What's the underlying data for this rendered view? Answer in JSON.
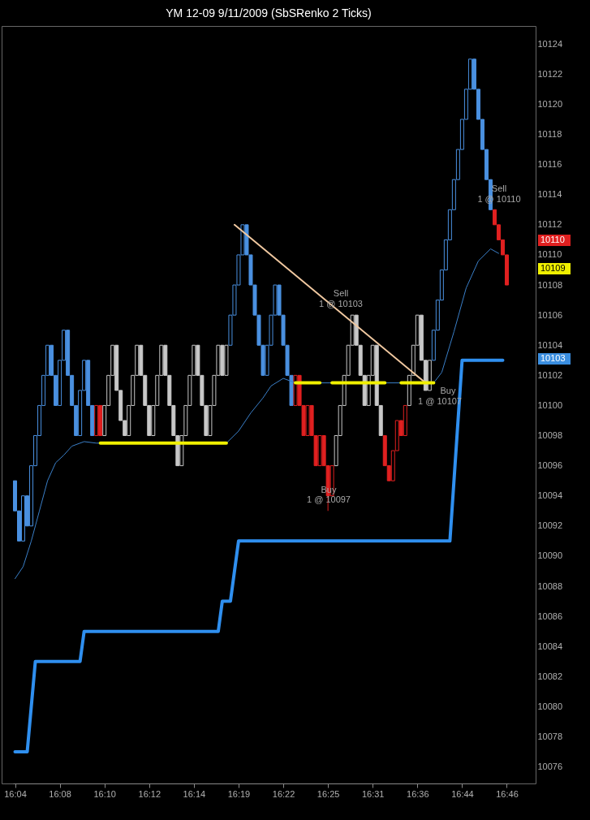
{
  "chart_data": {
    "type": "candlestick",
    "title": "YM 12-09  9/11/2009 (SbSRenko 2 Ticks)",
    "categories": [
      "16:04",
      null,
      null,
      null,
      null,
      null,
      null,
      null,
      null,
      null,
      null,
      "16:08",
      null,
      null,
      null,
      null,
      null,
      null,
      null,
      null,
      null,
      null,
      "16:10",
      null,
      null,
      null,
      null,
      null,
      null,
      null,
      null,
      null,
      null,
      "16:12",
      null,
      null,
      null,
      null,
      null,
      null,
      null,
      null,
      null,
      null,
      "16:14",
      null,
      null,
      null,
      null,
      null,
      null,
      null,
      null,
      null,
      null,
      "16:19",
      null,
      null,
      null,
      null,
      null,
      null,
      null,
      null,
      null,
      null,
      "16:22",
      null,
      null,
      null,
      null,
      null,
      null,
      null,
      null,
      null,
      null,
      "16:25",
      null,
      null,
      null,
      null,
      null,
      null,
      null,
      null,
      null,
      null,
      "16:31",
      null,
      null,
      null,
      null,
      null,
      null,
      null,
      null,
      null,
      null,
      "16:36",
      null,
      null,
      null,
      null,
      null,
      null,
      null,
      null,
      null,
      null,
      "16:44",
      null,
      null,
      null,
      null,
      null,
      null,
      null,
      null,
      null,
      null,
      "16:46"
    ],
    "ohlc": [
      [
        10095,
        10095,
        10093,
        10093
      ],
      [
        10093,
        10093,
        10091,
        10091
      ],
      [
        10091,
        10094,
        10091,
        10094
      ],
      [
        10094,
        10094,
        10092,
        10092
      ],
      [
        10092,
        10096,
        10092,
        10096
      ],
      [
        10096,
        10098,
        10096,
        10098
      ],
      [
        10098,
        10100,
        10098,
        10100
      ],
      [
        10100,
        10102,
        10100,
        10102
      ],
      [
        10102,
        10104,
        10102,
        10104
      ],
      [
        10104,
        10104,
        10102,
        10102
      ],
      [
        10102,
        10102,
        10100,
        10100
      ],
      [
        10100,
        10103,
        10100,
        10103
      ],
      [
        10103,
        10105,
        10103,
        10105
      ],
      [
        10105,
        10105,
        10102,
        10102
      ],
      [
        10102,
        10102,
        10100,
        10100
      ],
      [
        10100,
        10100,
        10098,
        10098
      ],
      [
        10098,
        10101,
        10098,
        10101
      ],
      [
        10101,
        10103,
        10101,
        10103
      ],
      [
        10103,
        10103,
        10100,
        10100
      ],
      [
        10100,
        10100,
        10098,
        10098
      ],
      [
        10098,
        10100,
        10098,
        10100
      ],
      [
        10100,
        10100,
        10098,
        10098
      ],
      [
        10098,
        10100,
        10098,
        10100
      ],
      [
        10100,
        10102,
        10100,
        10102
      ],
      [
        10102,
        10104,
        10102,
        10104
      ],
      [
        10104,
        10104,
        10101,
        10101
      ],
      [
        10101,
        10101,
        10099,
        10099
      ],
      [
        10099,
        10099,
        10098,
        10098
      ],
      [
        10098,
        10100,
        10098,
        10100
      ],
      [
        10100,
        10102,
        10100,
        10102
      ],
      [
        10102,
        10104,
        10102,
        10104
      ],
      [
        10104,
        10104,
        10102,
        10102
      ],
      [
        10102,
        10102,
        10100,
        10100
      ],
      [
        10100,
        10100,
        10098,
        10098
      ],
      [
        10098,
        10100,
        10098,
        10100
      ],
      [
        10100,
        10102,
        10100,
        10102
      ],
      [
        10102,
        10104,
        10102,
        10104
      ],
      [
        10104,
        10104,
        10102,
        10102
      ],
      [
        10102,
        10102,
        10100,
        10100
      ],
      [
        10100,
        10100,
        10098,
        10098
      ],
      [
        10098,
        10098,
        10096,
        10096
      ],
      [
        10096,
        10098,
        10096,
        10098
      ],
      [
        10098,
        10100,
        10098,
        10100
      ],
      [
        10100,
        10102,
        10100,
        10102
      ],
      [
        10102,
        10104,
        10102,
        10104
      ],
      [
        10104,
        10104,
        10102,
        10102
      ],
      [
        10102,
        10102,
        10100,
        10100
      ],
      [
        10100,
        10100,
        10098,
        10098
      ],
      [
        10098,
        10100,
        10098,
        10100
      ],
      [
        10100,
        10102,
        10100,
        10102
      ],
      [
        10102,
        10104,
        10102,
        10104
      ],
      [
        10104,
        10104,
        10102,
        10102
      ],
      [
        10102,
        10104,
        10102,
        10104
      ],
      [
        10104,
        10106,
        10104,
        10106
      ],
      [
        10106,
        10108,
        10106,
        10108
      ],
      [
        10108,
        10110,
        10108,
        10110
      ],
      [
        10110,
        10112,
        10110,
        10112
      ],
      [
        10112,
        10112,
        10110,
        10110
      ],
      [
        10110,
        10110,
        10108,
        10108
      ],
      [
        10108,
        10108,
        10106,
        10106
      ],
      [
        10106,
        10106,
        10104,
        10104
      ],
      [
        10104,
        10104,
        10102,
        10102
      ],
      [
        10102,
        10104,
        10102,
        10104
      ],
      [
        10104,
        10106,
        10104,
        10106
      ],
      [
        10106,
        10108,
        10106,
        10108
      ],
      [
        10108,
        10108,
        10106,
        10106
      ],
      [
        10106,
        10106,
        10104,
        10104
      ],
      [
        10104,
        10104,
        10102,
        10102
      ],
      [
        10102,
        10102,
        10100,
        10100
      ],
      [
        10100,
        10102,
        10100,
        10102
      ],
      [
        10102,
        10102,
        10100,
        10100
      ],
      [
        10100,
        10100,
        10098,
        10098
      ],
      [
        10098,
        10100,
        10098,
        10100
      ],
      [
        10100,
        10100,
        10098,
        10098
      ],
      [
        10098,
        10098,
        10096,
        10096
      ],
      [
        10096,
        10098,
        10096,
        10098
      ],
      [
        10098,
        10098,
        10096,
        10096
      ],
      [
        10096,
        10096,
        10093,
        10094
      ],
      [
        10094,
        10096,
        10094,
        10096
      ],
      [
        10096,
        10098,
        10096,
        10098
      ],
      [
        10098,
        10100,
        10098,
        10100
      ],
      [
        10100,
        10102,
        10100,
        10102
      ],
      [
        10102,
        10104,
        10102,
        10104
      ],
      [
        10104,
        10106,
        10104,
        10106
      ],
      [
        10106,
        10106,
        10104,
        10104
      ],
      [
        10104,
        10104,
        10102,
        10102
      ],
      [
        10102,
        10102,
        10100,
        10100
      ],
      [
        10100,
        10102,
        10100,
        10102
      ],
      [
        10102,
        10104,
        10102,
        10104
      ],
      [
        10104,
        10104,
        10100,
        10100
      ],
      [
        10100,
        10100,
        10098,
        10098
      ],
      [
        10098,
        10098,
        10096,
        10096
      ],
      [
        10096,
        10096,
        10095,
        10095
      ],
      [
        10095,
        10097,
        10095,
        10097
      ],
      [
        10097,
        10099,
        10097,
        10099
      ],
      [
        10099,
        10099,
        10098,
        10098
      ],
      [
        10098,
        10100,
        10098,
        10100
      ],
      [
        10100,
        10102,
        10100,
        10102
      ],
      [
        10102,
        10104,
        10102,
        10104
      ],
      [
        10104,
        10106,
        10104,
        10106
      ],
      [
        10106,
        10106,
        10103,
        10103
      ],
      [
        10103,
        10103,
        10101,
        10101
      ],
      [
        10101,
        10103,
        10101,
        10103
      ],
      [
        10103,
        10105,
        10103,
        10105
      ],
      [
        10105,
        10107,
        10105,
        10107
      ],
      [
        10107,
        10109,
        10107,
        10109
      ],
      [
        10109,
        10111,
        10109,
        10111
      ],
      [
        10111,
        10113,
        10111,
        10113
      ],
      [
        10113,
        10115,
        10113,
        10115
      ],
      [
        10115,
        10117,
        10115,
        10117
      ],
      [
        10117,
        10119,
        10117,
        10119
      ],
      [
        10119,
        10121,
        10119,
        10121
      ],
      [
        10121,
        10123,
        10121,
        10123
      ],
      [
        10123,
        10123,
        10121,
        10121
      ],
      [
        10121,
        10121,
        10119,
        10119
      ],
      [
        10119,
        10119,
        10117,
        10117
      ],
      [
        10117,
        10117,
        10115,
        10115
      ],
      [
        10115,
        10115,
        10113,
        10113
      ],
      [
        10113,
        10113,
        10112,
        10112
      ],
      [
        10112,
        10112,
        10111,
        10111
      ],
      [
        10111,
        10111,
        10110,
        10110
      ],
      [
        10110,
        10110,
        10108,
        10108
      ]
    ],
    "colors": [
      "#4a90e0",
      "#4a90e0",
      "#4a90e0",
      "#4a90e0",
      "#4a90e0",
      "#4a90e0",
      "#4a90e0",
      "#4a90e0",
      "#4a90e0",
      "#4a90e0",
      "#4a90e0",
      "#4a90e0",
      "#4a90e0",
      "#4a90e0",
      "#4a90e0",
      "#4a90e0",
      "#4a90e0",
      "#4a90e0",
      "#4a90e0",
      "#4a90e0",
      "#e02020",
      "#e02020",
      "#c8c8c8",
      "#c8c8c8",
      "#c8c8c8",
      "#c8c8c8",
      "#c8c8c8",
      "#c8c8c8",
      "#c8c8c8",
      "#c8c8c8",
      "#c8c8c8",
      "#c8c8c8",
      "#c8c8c8",
      "#c8c8c8",
      "#c8c8c8",
      "#c8c8c8",
      "#c8c8c8",
      "#c8c8c8",
      "#c8c8c8",
      "#c8c8c8",
      "#c8c8c8",
      "#c8c8c8",
      "#c8c8c8",
      "#c8c8c8",
      "#c8c8c8",
      "#c8c8c8",
      "#c8c8c8",
      "#c8c8c8",
      "#c8c8c8",
      "#c8c8c8",
      "#c8c8c8",
      "#c8c8c8",
      "#c8c8c8",
      "#4a90e0",
      "#4a90e0",
      "#4a90e0",
      "#4a90e0",
      "#4a90e0",
      "#4a90e0",
      "#4a90e0",
      "#4a90e0",
      "#4a90e0",
      "#4a90e0",
      "#4a90e0",
      "#4a90e0",
      "#4a90e0",
      "#4a90e0",
      "#4a90e0",
      "#4a90e0",
      "#e02020",
      "#e02020",
      "#e02020",
      "#e02020",
      "#e02020",
      "#e02020",
      "#e02020",
      "#e02020",
      "#e02020",
      "#e02020",
      "#c8c8c8",
      "#c8c8c8",
      "#c8c8c8",
      "#c8c8c8",
      "#c8c8c8",
      "#c8c8c8",
      "#c8c8c8",
      "#c8c8c8",
      "#c8c8c8",
      "#c8c8c8",
      "#c8c8c8",
      "#c8c8c8",
      "#e02020",
      "#e02020",
      "#e02020",
      "#e02020",
      "#e02020",
      "#e02020",
      "#c8c8c8",
      "#c8c8c8",
      "#c8c8c8",
      "#c8c8c8",
      "#c8c8c8",
      "#c8c8c8",
      "#4a90e0",
      "#4a90e0",
      "#4a90e0",
      "#4a90e0",
      "#4a90e0",
      "#4a90e0",
      "#4a90e0",
      "#4a90e0",
      "#4a90e0",
      "#4a90e0",
      "#4a90e0",
      "#4a90e0",
      "#4a90e0",
      "#4a90e0",
      "#4a90e0",
      "#e02020",
      "#e02020",
      "#e02020",
      "#e02020"
    ],
    "series": [
      {
        "type": "line",
        "color": "#2f8fef",
        "values": [
          10077,
          null,
          null,
          10077,
          null,
          10083,
          null,
          null,
          null,
          null,
          null,
          null,
          null,
          null,
          null,
          null,
          10083,
          10085,
          null,
          null,
          null,
          null,
          null,
          null,
          null,
          null,
          null,
          null,
          null,
          null,
          null,
          null,
          null,
          null,
          null,
          null,
          null,
          null,
          null,
          null,
          null,
          null,
          null,
          null,
          null,
          null,
          null,
          null,
          null,
          null,
          10085,
          10087,
          null,
          10087,
          null,
          10091,
          null,
          null,
          null,
          null,
          null,
          null,
          null,
          null,
          null,
          null,
          null,
          null,
          null,
          null,
          null,
          null,
          null,
          null,
          null,
          null,
          null,
          null,
          null,
          null,
          null,
          null,
          null,
          null,
          null,
          null,
          null,
          null,
          null,
          null,
          null,
          null,
          null,
          null,
          null,
          null,
          null,
          null,
          null,
          null,
          null,
          null,
          null,
          null,
          null,
          null,
          null,
          10091,
          null,
          null,
          10103,
          null,
          null,
          null,
          null,
          null,
          null,
          null,
          null,
          null,
          10103,
          null
        ]
      },
      {
        "type": "line",
        "color": "#3a7fc8",
        "values": [
          10088.5,
          null,
          10089.3,
          null,
          10091,
          null,
          10093,
          null,
          10095,
          null,
          10096.2,
          null,
          10096.7,
          null,
          10097.3,
          null,
          null,
          10097.6,
          null,
          null,
          10097.5,
          null,
          null,
          null,
          null,
          null,
          null,
          null,
          null,
          null,
          null,
          null,
          null,
          null,
          null,
          null,
          null,
          null,
          null,
          null,
          null,
          null,
          null,
          null,
          null,
          null,
          null,
          null,
          null,
          null,
          null,
          null,
          10097.5,
          null,
          null,
          10098.3,
          null,
          null,
          10099.5,
          null,
          null,
          10100.5,
          null,
          10101.3,
          null,
          null,
          10101.8,
          null,
          null,
          10101.5,
          null,
          null,
          null,
          null,
          null,
          null,
          null,
          null,
          null,
          null,
          null,
          null,
          null,
          null,
          null,
          null,
          null,
          null,
          null,
          null,
          null,
          null,
          null,
          null,
          null,
          null,
          null,
          null,
          null,
          null,
          null,
          null,
          null,
          10101.5,
          null,
          10102.2,
          null,
          null,
          10104.9,
          null,
          null,
          10107.8,
          null,
          null,
          10109.6,
          null,
          null,
          10110.4,
          null,
          10110.1,
          null,
          null
        ]
      },
      {
        "type": "line",
        "color": "#f0c8a0",
        "values": [
          null,
          null,
          null,
          null,
          null,
          null,
          null,
          null,
          null,
          null,
          null,
          null,
          null,
          null,
          null,
          null,
          null,
          null,
          null,
          null,
          null,
          null,
          null,
          null,
          null,
          null,
          null,
          null,
          null,
          null,
          null,
          null,
          null,
          null,
          null,
          null,
          null,
          null,
          null,
          null,
          null,
          null,
          null,
          null,
          null,
          null,
          null,
          null,
          null,
          null,
          null,
          null,
          null,
          null,
          10112,
          null,
          null,
          null,
          null,
          null,
          null,
          null,
          null,
          null,
          null,
          null,
          null,
          null,
          null,
          null,
          null,
          null,
          null,
          null,
          null,
          null,
          null,
          null,
          null,
          null,
          null,
          null,
          null,
          null,
          null,
          null,
          null,
          null,
          null,
          null,
          null,
          null,
          null,
          null,
          null,
          null,
          null,
          null,
          null,
          null,
          null,
          10101.5,
          null,
          null,
          null,
          null,
          null,
          null,
          null,
          null,
          null,
          null,
          null,
          null,
          null,
          null,
          null,
          null,
          null,
          null,
          null,
          null
        ]
      },
      {
        "type": "line",
        "color": "#f0f000",
        "values": [
          null,
          null,
          null,
          null,
          null,
          null,
          null,
          null,
          null,
          null,
          null,
          null,
          null,
          null,
          null,
          null,
          null,
          null,
          null,
          null,
          null,
          10097.5,
          null,
          null,
          null,
          null,
          null,
          null,
          null,
          null,
          null,
          null,
          null,
          null,
          null,
          null,
          null,
          null,
          null,
          null,
          null,
          null,
          null,
          null,
          null,
          null,
          null,
          null,
          null,
          null,
          null,
          null,
          10097.5,
          null,
          null,
          null,
          null,
          null,
          null,
          null,
          null,
          null,
          null,
          null,
          null,
          null,
          null,
          null,
          null,
          null,
          null,
          null,
          null,
          null,
          null,
          null,
          null,
          null,
          null,
          null,
          null,
          null,
          null,
          null,
          null,
          null,
          null,
          null,
          null,
          null,
          null,
          null,
          null,
          null,
          null,
          null,
          null,
          null,
          null,
          null,
          null,
          null,
          null,
          null,
          null,
          null,
          null,
          null,
          null,
          null,
          null,
          null,
          null,
          null,
          null,
          null,
          null,
          null,
          null,
          null,
          null,
          null
        ]
      },
      {
        "type": "line",
        "color": "#f0f000",
        "values": [
          null,
          null,
          null,
          null,
          null,
          null,
          null,
          null,
          null,
          null,
          null,
          null,
          null,
          null,
          null,
          null,
          null,
          null,
          null,
          null,
          null,
          null,
          null,
          null,
          null,
          null,
          null,
          null,
          null,
          null,
          null,
          null,
          null,
          null,
          null,
          null,
          null,
          null,
          null,
          null,
          null,
          null,
          null,
          null,
          null,
          null,
          null,
          null,
          null,
          null,
          null,
          null,
          null,
          null,
          null,
          null,
          null,
          null,
          null,
          null,
          null,
          null,
          null,
          null,
          null,
          null,
          null,
          null,
          null,
          10101.5,
          null,
          null,
          null,
          null,
          null,
          10101.5,
          null,
          null,
          null,
          null,
          null,
          null,
          null,
          null,
          null,
          null,
          null,
          null,
          null,
          null,
          null,
          null,
          null,
          null,
          null,
          null,
          null,
          null,
          null,
          null,
          null,
          null,
          null,
          null,
          null,
          null,
          null,
          null,
          null,
          null,
          null,
          null,
          null,
          null,
          null,
          null,
          null,
          null,
          null,
          null,
          null,
          null
        ]
      },
      {
        "type": "line",
        "color": "#f0f000",
        "values": [
          null,
          null,
          null,
          null,
          null,
          null,
          null,
          null,
          null,
          null,
          null,
          null,
          null,
          null,
          null,
          null,
          null,
          null,
          null,
          null,
          null,
          null,
          null,
          null,
          null,
          null,
          null,
          null,
          null,
          null,
          null,
          null,
          null,
          null,
          null,
          null,
          null,
          null,
          null,
          null,
          null,
          null,
          null,
          null,
          null,
          null,
          null,
          null,
          null,
          null,
          null,
          null,
          null,
          null,
          null,
          null,
          null,
          null,
          null,
          null,
          null,
          null,
          null,
          null,
          null,
          null,
          null,
          null,
          null,
          null,
          null,
          null,
          null,
          null,
          null,
          null,
          null,
          null,
          10101.5,
          null,
          null,
          null,
          null,
          null,
          null,
          null,
          null,
          null,
          null,
          null,
          null,
          10101.5,
          null,
          null,
          null,
          null,
          null,
          null,
          null,
          null,
          null,
          null,
          null,
          null,
          null,
          null,
          null,
          null,
          null,
          null,
          null,
          null,
          null,
          null,
          null,
          null,
          null,
          null,
          null,
          null,
          null,
          null
        ]
      },
      {
        "type": "line",
        "color": "#f0f000",
        "values": [
          null,
          null,
          null,
          null,
          null,
          null,
          null,
          null,
          null,
          null,
          null,
          null,
          null,
          null,
          null,
          null,
          null,
          null,
          null,
          null,
          null,
          null,
          null,
          null,
          null,
          null,
          null,
          null,
          null,
          null,
          null,
          null,
          null,
          null,
          null,
          null,
          null,
          null,
          null,
          null,
          null,
          null,
          null,
          null,
          null,
          null,
          null,
          null,
          null,
          null,
          null,
          null,
          null,
          null,
          null,
          null,
          null,
          null,
          null,
          null,
          null,
          null,
          null,
          null,
          null,
          null,
          null,
          null,
          null,
          null,
          null,
          null,
          null,
          null,
          null,
          null,
          null,
          null,
          null,
          null,
          null,
          null,
          null,
          null,
          null,
          null,
          null,
          null,
          null,
          null,
          null,
          null,
          null,
          null,
          null,
          10101.5,
          null,
          null,
          null,
          null,
          null,
          null,
          null,
          10101.5,
          null,
          null,
          null,
          null,
          null,
          null,
          null,
          null,
          null,
          null,
          null,
          null,
          null,
          null,
          null,
          null,
          null,
          null
        ]
      }
    ],
    "annotations": [
      "Sell",
      "1 @ 10110",
      "Sell",
      "1 @ 10103",
      "Buy",
      "1 @ 10097",
      "Buy",
      "1 @ 10107",
      "10110",
      "10109",
      "10103"
    ],
    "ylim": [
      10074.9,
      10125.2
    ],
    "yticks": [
      10076,
      10078,
      10080,
      10082,
      10084,
      10086,
      10088,
      10090,
      10092,
      10094,
      10096,
      10098,
      10100,
      10102,
      10104,
      10106,
      10108,
      10110,
      10112,
      10114,
      10116,
      10118,
      10120,
      10122,
      10124
    ],
    "grid": false
  }
}
